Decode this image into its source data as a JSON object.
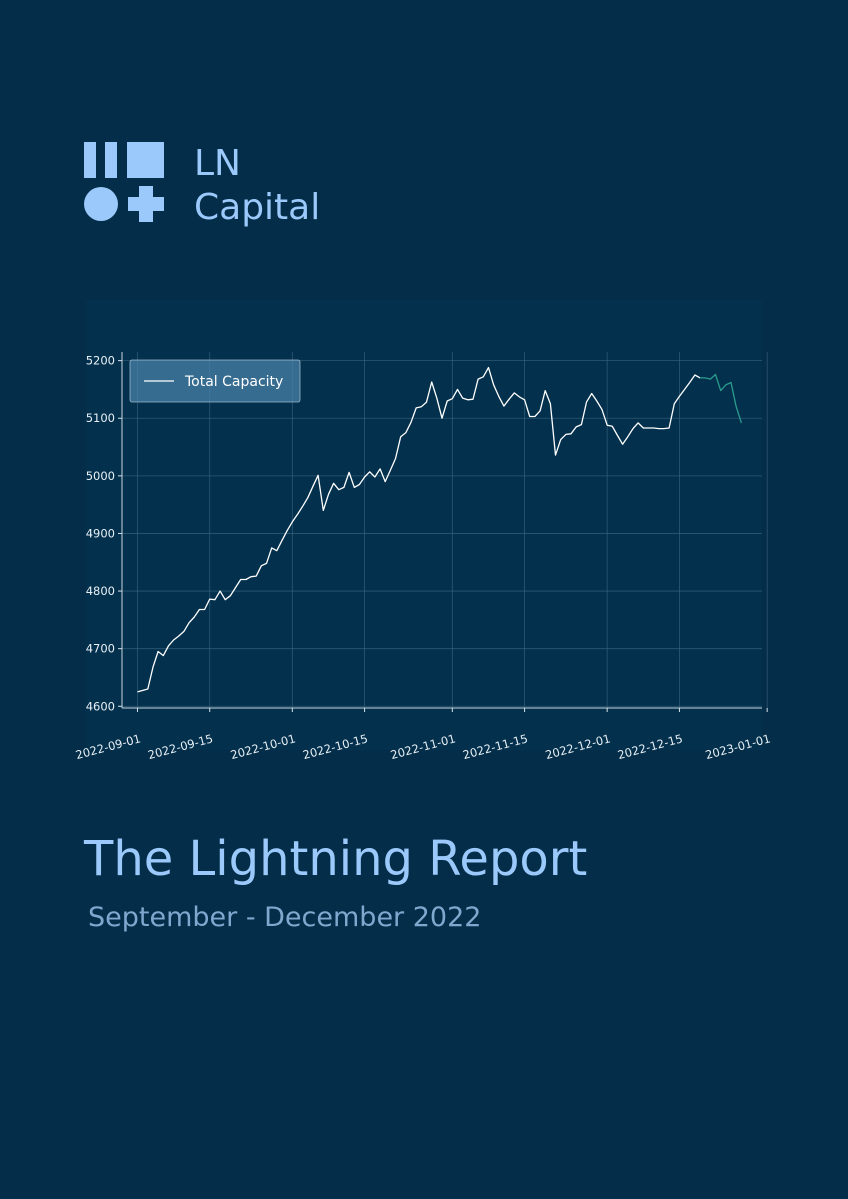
{
  "brand": {
    "name_line1": "LN",
    "name_line2": "Capital",
    "color": "#9bc9fb"
  },
  "report": {
    "title": "The Lightning Report",
    "subtitle": "September - December 2022"
  },
  "chart_data": {
    "type": "line",
    "title": "",
    "xlabel": "",
    "ylabel": "",
    "x_range": [
      "2022-08-29",
      "2022-12-31"
    ],
    "ylim": [
      4597,
      5215
    ],
    "yticks": [
      4600,
      4700,
      4800,
      4900,
      5000,
      5100,
      5200
    ],
    "xticks": [
      "2022-09-01",
      "2022-09-15",
      "2022-10-01",
      "2022-10-15",
      "2022-11-01",
      "2022-11-15",
      "2022-12-01",
      "2022-12-15",
      "2023-01-01"
    ],
    "grid": true,
    "legend": "top-left",
    "series": [
      {
        "name": "Total Capacity",
        "color": "#ffffff",
        "points": [
          [
            "2022-09-01",
            4625
          ],
          [
            "2022-09-03",
            4630
          ],
          [
            "2022-09-04",
            4668
          ],
          [
            "2022-09-05",
            4695
          ],
          [
            "2022-09-06",
            4688
          ],
          [
            "2022-09-07",
            4705
          ],
          [
            "2022-09-08",
            4715
          ],
          [
            "2022-09-09",
            4722
          ],
          [
            "2022-09-10",
            4730
          ],
          [
            "2022-09-11",
            4745
          ],
          [
            "2022-09-12",
            4755
          ],
          [
            "2022-09-13",
            4768
          ],
          [
            "2022-09-14",
            4768
          ],
          [
            "2022-09-15",
            4786
          ],
          [
            "2022-09-16",
            4785
          ],
          [
            "2022-09-17",
            4800
          ],
          [
            "2022-09-18",
            4785
          ],
          [
            "2022-09-19",
            4792
          ],
          [
            "2022-09-20",
            4806
          ],
          [
            "2022-09-21",
            4820
          ],
          [
            "2022-09-22",
            4820
          ],
          [
            "2022-09-23",
            4825
          ],
          [
            "2022-09-24",
            4826
          ],
          [
            "2022-09-25",
            4844
          ],
          [
            "2022-09-26",
            4848
          ],
          [
            "2022-09-27",
            4875
          ],
          [
            "2022-09-28",
            4870
          ],
          [
            "2022-09-29",
            4888
          ],
          [
            "2022-09-30",
            4905
          ],
          [
            "2022-10-01",
            4920
          ],
          [
            "2022-10-02",
            4933
          ],
          [
            "2022-10-03",
            4947
          ],
          [
            "2022-10-04",
            4962
          ],
          [
            "2022-10-05",
            4982
          ],
          [
            "2022-10-06",
            5001
          ],
          [
            "2022-10-07",
            4940
          ],
          [
            "2022-10-08",
            4968
          ],
          [
            "2022-10-09",
            4987
          ],
          [
            "2022-10-10",
            4976
          ],
          [
            "2022-10-11",
            4980
          ],
          [
            "2022-10-12",
            5006
          ],
          [
            "2022-10-13",
            4980
          ],
          [
            "2022-10-14",
            4985
          ],
          [
            "2022-10-15",
            4998
          ],
          [
            "2022-10-16",
            5007
          ],
          [
            "2022-10-17",
            4998
          ],
          [
            "2022-10-18",
            5012
          ],
          [
            "2022-10-19",
            4990
          ],
          [
            "2022-10-20",
            5010
          ],
          [
            "2022-10-21",
            5030
          ],
          [
            "2022-10-22",
            5068
          ],
          [
            "2022-10-23",
            5075
          ],
          [
            "2022-10-24",
            5093
          ],
          [
            "2022-10-25",
            5118
          ],
          [
            "2022-10-26",
            5120
          ],
          [
            "2022-10-27",
            5128
          ],
          [
            "2022-10-28",
            5163
          ],
          [
            "2022-10-29",
            5135
          ],
          [
            "2022-10-30",
            5100
          ],
          [
            "2022-10-31",
            5130
          ],
          [
            "2022-11-01",
            5134
          ],
          [
            "2022-11-02",
            5150
          ],
          [
            "2022-11-03",
            5135
          ],
          [
            "2022-11-04",
            5132
          ],
          [
            "2022-11-05",
            5133
          ],
          [
            "2022-11-06",
            5168
          ],
          [
            "2022-11-07",
            5172
          ],
          [
            "2022-11-08",
            5188
          ],
          [
            "2022-11-09",
            5158
          ],
          [
            "2022-11-10",
            5138
          ],
          [
            "2022-11-11",
            5121
          ],
          [
            "2022-11-12",
            5133
          ],
          [
            "2022-11-13",
            5144
          ],
          [
            "2022-11-14",
            5137
          ],
          [
            "2022-11-15",
            5132
          ],
          [
            "2022-11-16",
            5103
          ],
          [
            "2022-11-17",
            5103
          ],
          [
            "2022-11-18",
            5113
          ],
          [
            "2022-11-19",
            5148
          ],
          [
            "2022-11-20",
            5125
          ],
          [
            "2022-11-21",
            5036
          ],
          [
            "2022-11-22",
            5063
          ],
          [
            "2022-11-23",
            5072
          ],
          [
            "2022-11-24",
            5073
          ],
          [
            "2022-11-25",
            5085
          ],
          [
            "2022-11-26",
            5089
          ],
          [
            "2022-11-27",
            5128
          ],
          [
            "2022-11-28",
            5143
          ],
          [
            "2022-11-29",
            5130
          ],
          [
            "2022-11-30",
            5115
          ],
          [
            "2022-12-01",
            5088
          ],
          [
            "2022-12-02",
            5086
          ],
          [
            "2022-12-03",
            5070
          ],
          [
            "2022-12-04",
            5055
          ],
          [
            "2022-12-05",
            5068
          ],
          [
            "2022-12-06",
            5082
          ],
          [
            "2022-12-07",
            5092
          ],
          [
            "2022-12-08",
            5083
          ],
          [
            "2022-12-09",
            5083
          ],
          [
            "2022-12-10",
            5083
          ],
          [
            "2022-12-11",
            5082
          ],
          [
            "2022-12-12",
            5082
          ],
          [
            "2022-12-13",
            5083
          ],
          [
            "2022-12-14",
            5125
          ],
          [
            "2022-12-15",
            5138
          ],
          [
            "2022-12-16",
            5150
          ],
          [
            "2022-12-17",
            5162
          ],
          [
            "2022-12-18",
            5175
          ],
          [
            "2022-12-19",
            5170
          ]
        ]
      },
      {
        "name": "",
        "color": "#2a9d8f",
        "points": [
          [
            "2022-12-19",
            5170
          ],
          [
            "2022-12-20",
            5170
          ],
          [
            "2022-12-21",
            5168
          ],
          [
            "2022-12-22",
            5176
          ],
          [
            "2022-12-23",
            5148
          ],
          [
            "2022-12-24",
            5158
          ],
          [
            "2022-12-25",
            5162
          ],
          [
            "2022-12-26",
            5120
          ],
          [
            "2022-12-27",
            5092
          ]
        ]
      }
    ]
  }
}
